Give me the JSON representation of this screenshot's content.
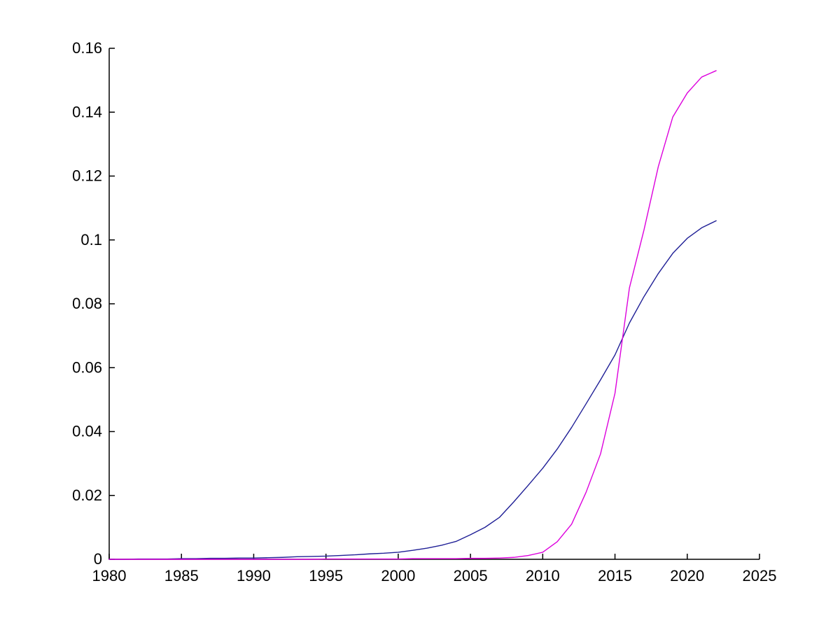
{
  "canvas": {
    "background_color": "#ffffff",
    "axis_color": "#000000",
    "tick_label_color": "#000000"
  },
  "chart_data": {
    "type": "line",
    "title": "",
    "xlabel": "",
    "ylabel": "",
    "grid": false,
    "legend": null,
    "xlim": [
      1980,
      2025
    ],
    "ylim": [
      0,
      0.16
    ],
    "xticks": [
      1980,
      1985,
      1990,
      1995,
      2000,
      2005,
      2010,
      2015,
      2020,
      2025
    ],
    "xtick_labels": [
      "1980",
      "1985",
      "1990",
      "1995",
      "2000",
      "2005",
      "2010",
      "2015",
      "2020",
      "2025"
    ],
    "yticks": [
      0,
      0.02,
      0.04,
      0.06,
      0.08,
      0.1,
      0.12,
      0.14,
      0.16
    ],
    "ytick_labels": [
      "0",
      "0.02",
      "0.04",
      "0.06",
      "0.08",
      "0.1",
      "0.12",
      "0.14",
      "0.16"
    ],
    "x": [
      1980,
      1981,
      1982,
      1983,
      1984,
      1985,
      1986,
      1987,
      1988,
      1989,
      1990,
      1991,
      1992,
      1993,
      1994,
      1995,
      1996,
      1997,
      1998,
      1999,
      2000,
      2001,
      2002,
      2003,
      2004,
      2005,
      2006,
      2007,
      2008,
      2009,
      2010,
      2011,
      2012,
      2013,
      2014,
      2015,
      2016,
      2017,
      2018,
      2019,
      2020,
      2021,
      2022
    ],
    "series": [
      {
        "name": "blue-series",
        "color": "#1f1f96",
        "values": [
          0.0,
          0.0,
          0.0001,
          0.0001,
          0.0001,
          0.0002,
          0.0002,
          0.0003,
          0.0003,
          0.0004,
          0.0004,
          0.0005,
          0.0006,
          0.0008,
          0.0009,
          0.001,
          0.0012,
          0.0014,
          0.0017,
          0.0019,
          0.0022,
          0.0028,
          0.0035,
          0.0044,
          0.0056,
          0.0077,
          0.01,
          0.0131,
          0.018,
          0.0232,
          0.0285,
          0.0345,
          0.0413,
          0.0487,
          0.0562,
          0.064,
          0.074,
          0.0822,
          0.0895,
          0.0958,
          0.1005,
          0.1038,
          0.106
        ]
      },
      {
        "name": "magenta-series",
        "color": "#dd00dd",
        "values": [
          0.0,
          0.0,
          0.0,
          0.0,
          0.0,
          0.0,
          0.0,
          0.0,
          0.0,
          0.0,
          0.0,
          0.0,
          0.0,
          0.0,
          0.0,
          0.0001,
          0.0001,
          0.0001,
          0.0001,
          0.0001,
          0.0001,
          0.0002,
          0.0002,
          0.0002,
          0.0002,
          0.0003,
          0.0003,
          0.0004,
          0.0006,
          0.0012,
          0.0022,
          0.0055,
          0.011,
          0.021,
          0.033,
          0.052,
          0.085,
          0.103,
          0.123,
          0.1385,
          0.146,
          0.151,
          0.153
        ]
      }
    ]
  }
}
